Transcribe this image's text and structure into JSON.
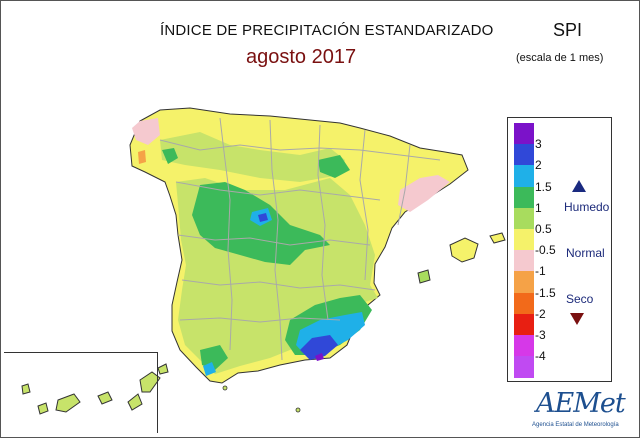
{
  "header": {
    "title": "ÍNDICE DE PRECIPITACIÓN ESTANDARIZADO",
    "subtitle": "agosto 2017",
    "index_name": "SPI",
    "scale_note": "(escala de 1 mes)"
  },
  "legend": {
    "classes": [
      {
        "label": "3",
        "color": "#7b12c9"
      },
      {
        "label": "2",
        "color": "#3048d8"
      },
      {
        "label": "1.5",
        "color": "#1fb0e8"
      },
      {
        "label": "1",
        "color": "#3cba5a"
      },
      {
        "label": "0.5",
        "color": "#a8dc5e"
      },
      {
        "label": "-0.5",
        "color": "#f5f26a"
      },
      {
        "label": "-1",
        "color": "#f5c9cf"
      },
      {
        "label": "-1.5",
        "color": "#f5a247"
      },
      {
        "label": "-2",
        "color": "#f26a1a"
      },
      {
        "label": "-3",
        "color": "#e81f12"
      },
      {
        "label": "-4",
        "color": "#d638e8"
      },
      {
        "label": "",
        "color": "#c04af2"
      }
    ],
    "zones": {
      "wet": "Humedo",
      "normal": "Normal",
      "dry": "Seco"
    },
    "wet_marker_color": "#1a2a80",
    "dry_marker_color": "#7a1010"
  },
  "logo": {
    "name": "AEMet",
    "agency": "Agencia Estatal de Meteorología"
  },
  "map": {
    "region": "Península Ibérica, Baleares y Canarias",
    "colors": {
      "background": "#f5f26a",
      "normal": "#c7e36a",
      "wet": "#3cba5a",
      "very_wet": "#1fb0e8",
      "extreme": "#3048d8",
      "dry": "#f5c9cf",
      "borders": "#a9a9a9"
    }
  }
}
